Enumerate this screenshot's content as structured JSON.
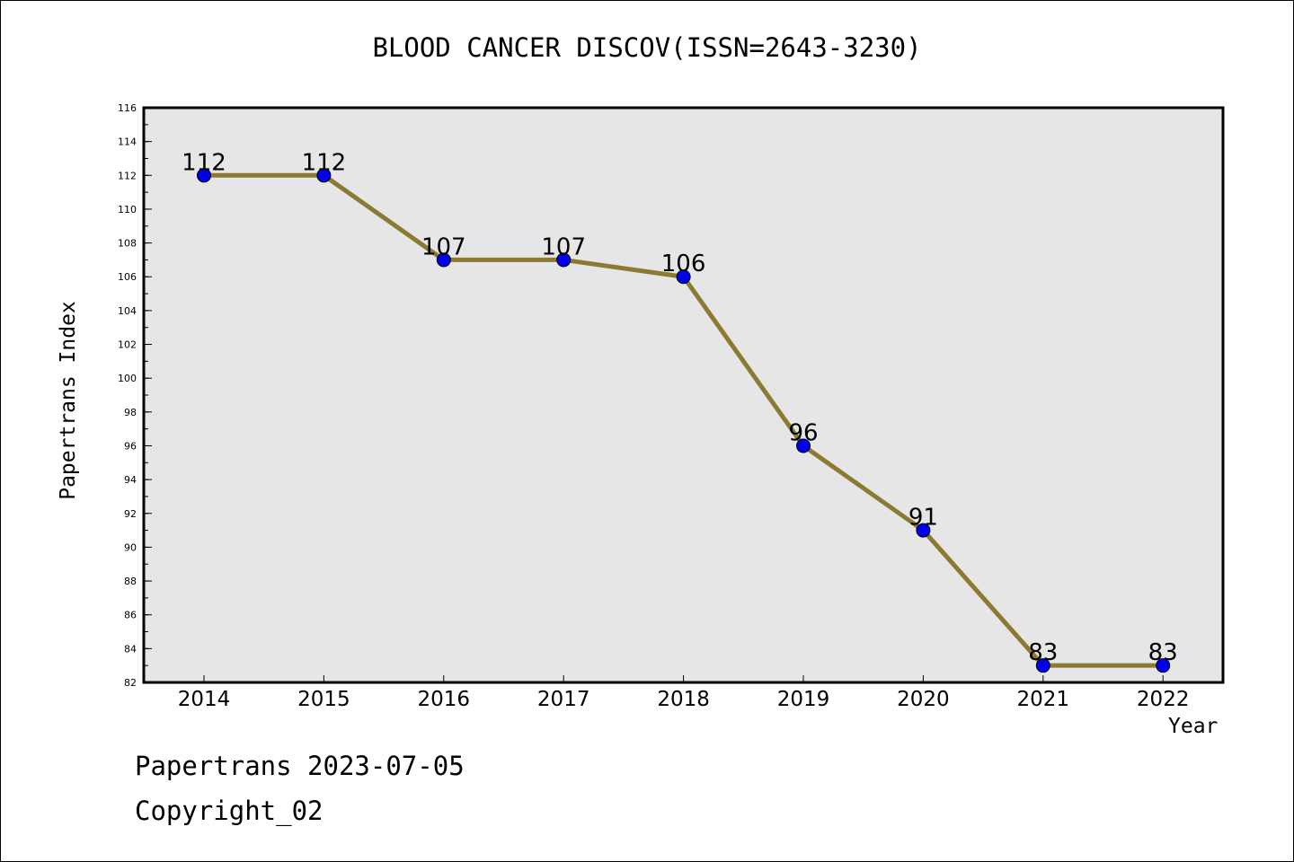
{
  "chart_data": {
    "type": "line",
    "title": "BLOOD CANCER DISCOV(ISSN=2643-3230)",
    "xlabel": "Year",
    "ylabel": "Papertrans Index",
    "categories": [
      "2014",
      "2015",
      "2016",
      "2017",
      "2018",
      "2019",
      "2020",
      "2021",
      "2022"
    ],
    "values": [
      112,
      112,
      107,
      107,
      106,
      96,
      91,
      83,
      83
    ],
    "ylim": [
      82,
      116
    ],
    "yticks": [
      82,
      84,
      86,
      88,
      90,
      92,
      94,
      96,
      98,
      100,
      102,
      104,
      106,
      108,
      110,
      112,
      114,
      116
    ],
    "grid": false,
    "legend": "none",
    "colors": {
      "line": "#8c7a32",
      "marker": "#0000ee",
      "plot_background": "#e6e6e6"
    }
  },
  "footer": {
    "line1": "Papertrans 2023-07-05",
    "line2": "Copyright_02"
  }
}
